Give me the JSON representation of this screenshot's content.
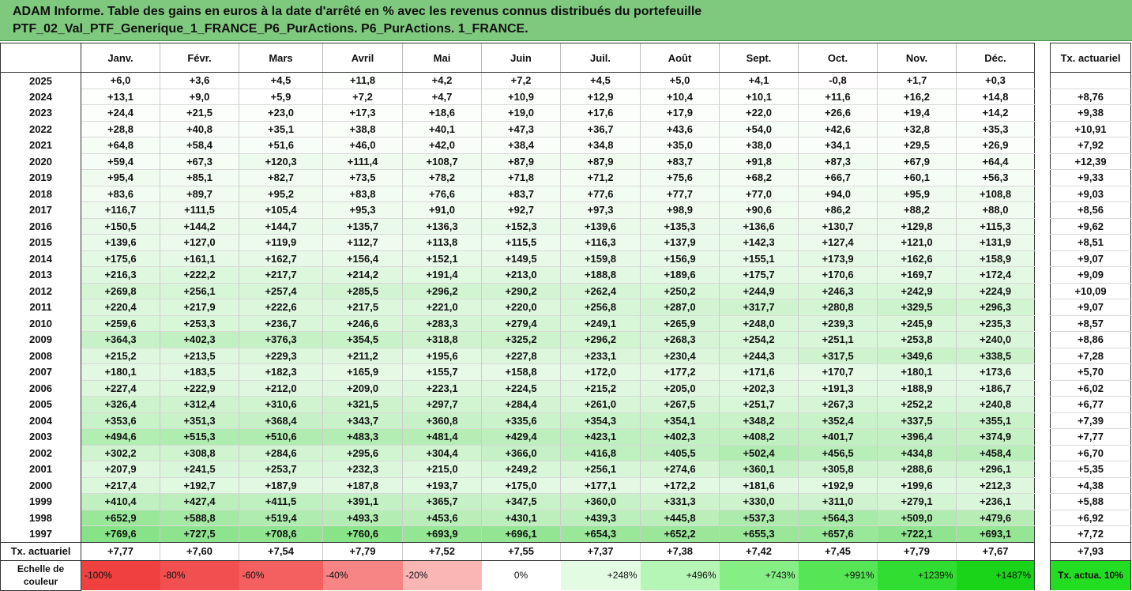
{
  "title": {
    "line1": "ADAM Informe. Table des gains en euros à la date d'arrêté en % avec les revenus connus distribués du portefeuille",
    "line2": "PTF_02_Val_PTF_Generique_1_FRANCE_P6_PurActions. P6_PurActions. 1_FRANCE."
  },
  "months": [
    "Janv.",
    "Févr.",
    "Mars",
    "Avril",
    "Mai",
    "Juin",
    "Juil.",
    "Août",
    "Sept.",
    "Oct.",
    "Nov.",
    "Déc."
  ],
  "side_header": "Tx. actuariel",
  "rows": [
    {
      "year": "2025",
      "values": [
        "+6,0",
        "+3,6",
        "+4,5",
        "+11,8",
        "+4,2",
        "+7,2",
        "+4,5",
        "+5,0",
        "+4,1",
        "-0,8",
        "+1,7",
        "+0,3"
      ],
      "rate": ""
    },
    {
      "year": "2024",
      "values": [
        "+13,1",
        "+9,0",
        "+5,9",
        "+7,2",
        "+4,7",
        "+10,9",
        "+12,9",
        "+10,4",
        "+10,1",
        "+11,6",
        "+16,2",
        "+14,8"
      ],
      "rate": "+8,76"
    },
    {
      "year": "2023",
      "values": [
        "+24,4",
        "+21,5",
        "+23,0",
        "+17,3",
        "+18,6",
        "+19,0",
        "+17,6",
        "+17,9",
        "+22,0",
        "+26,6",
        "+19,4",
        "+14,2"
      ],
      "rate": "+9,38"
    },
    {
      "year": "2022",
      "values": [
        "+28,8",
        "+40,8",
        "+35,1",
        "+38,8",
        "+40,1",
        "+47,3",
        "+36,7",
        "+43,6",
        "+54,0",
        "+42,6",
        "+32,8",
        "+35,3"
      ],
      "rate": "+10,91"
    },
    {
      "year": "2021",
      "values": [
        "+64,8",
        "+58,4",
        "+51,6",
        "+46,0",
        "+42,0",
        "+38,4",
        "+34,8",
        "+35,0",
        "+38,0",
        "+34,1",
        "+29,5",
        "+26,9"
      ],
      "rate": "+7,92"
    },
    {
      "year": "2020",
      "values": [
        "+59,4",
        "+67,3",
        "+120,3",
        "+111,4",
        "+108,7",
        "+87,9",
        "+87,9",
        "+83,7",
        "+91,8",
        "+87,3",
        "+67,9",
        "+64,4"
      ],
      "rate": "+12,39"
    },
    {
      "year": "2019",
      "values": [
        "+95,4",
        "+85,1",
        "+82,7",
        "+73,5",
        "+78,2",
        "+71,8",
        "+71,2",
        "+75,6",
        "+68,2",
        "+66,7",
        "+60,1",
        "+56,3"
      ],
      "rate": "+9,33"
    },
    {
      "year": "2018",
      "values": [
        "+83,6",
        "+89,7",
        "+95,2",
        "+83,8",
        "+76,6",
        "+83,7",
        "+77,6",
        "+77,7",
        "+77,0",
        "+94,0",
        "+95,9",
        "+108,8"
      ],
      "rate": "+9,03"
    },
    {
      "year": "2017",
      "values": [
        "+116,7",
        "+111,5",
        "+105,4",
        "+95,3",
        "+91,0",
        "+92,7",
        "+97,3",
        "+98,9",
        "+90,6",
        "+86,2",
        "+88,2",
        "+88,0"
      ],
      "rate": "+8,56"
    },
    {
      "year": "2016",
      "values": [
        "+150,5",
        "+144,2",
        "+144,7",
        "+135,7",
        "+136,3",
        "+152,3",
        "+139,6",
        "+135,3",
        "+136,6",
        "+130,7",
        "+129,8",
        "+115,3"
      ],
      "rate": "+9,62"
    },
    {
      "year": "2015",
      "values": [
        "+139,6",
        "+127,0",
        "+119,9",
        "+112,7",
        "+113,8",
        "+115,5",
        "+116,3",
        "+137,9",
        "+142,3",
        "+127,4",
        "+121,0",
        "+131,9"
      ],
      "rate": "+8,51"
    },
    {
      "year": "2014",
      "values": [
        "+175,6",
        "+161,1",
        "+162,7",
        "+156,4",
        "+152,1",
        "+149,5",
        "+159,8",
        "+156,9",
        "+155,1",
        "+173,9",
        "+162,6",
        "+158,9"
      ],
      "rate": "+9,07"
    },
    {
      "year": "2013",
      "values": [
        "+216,3",
        "+222,2",
        "+217,7",
        "+214,2",
        "+191,4",
        "+213,0",
        "+188,8",
        "+189,6",
        "+175,7",
        "+170,6",
        "+169,7",
        "+172,4"
      ],
      "rate": "+9,09"
    },
    {
      "year": "2012",
      "values": [
        "+269,8",
        "+256,1",
        "+257,4",
        "+285,5",
        "+296,2",
        "+290,2",
        "+262,4",
        "+250,2",
        "+244,9",
        "+246,3",
        "+242,9",
        "+224,9"
      ],
      "rate": "+10,09"
    },
    {
      "year": "2011",
      "values": [
        "+220,4",
        "+217,9",
        "+222,6",
        "+217,5",
        "+221,0",
        "+220,0",
        "+256,8",
        "+287,0",
        "+317,7",
        "+280,8",
        "+329,5",
        "+296,3"
      ],
      "rate": "+9,07"
    },
    {
      "year": "2010",
      "values": [
        "+259,6",
        "+253,3",
        "+236,7",
        "+246,6",
        "+283,3",
        "+279,4",
        "+249,1",
        "+265,9",
        "+248,0",
        "+239,3",
        "+245,9",
        "+235,3"
      ],
      "rate": "+8,57"
    },
    {
      "year": "2009",
      "values": [
        "+364,3",
        "+402,3",
        "+376,3",
        "+354,5",
        "+318,8",
        "+325,2",
        "+296,2",
        "+268,3",
        "+254,2",
        "+251,1",
        "+253,8",
        "+240,0"
      ],
      "rate": "+8,86"
    },
    {
      "year": "2008",
      "values": [
        "+215,2",
        "+213,5",
        "+229,3",
        "+211,2",
        "+195,6",
        "+227,8",
        "+233,1",
        "+230,4",
        "+244,3",
        "+317,5",
        "+349,6",
        "+338,5"
      ],
      "rate": "+7,28"
    },
    {
      "year": "2007",
      "values": [
        "+180,1",
        "+183,5",
        "+182,3",
        "+165,9",
        "+155,7",
        "+158,8",
        "+172,0",
        "+177,2",
        "+171,6",
        "+170,7",
        "+180,1",
        "+173,6"
      ],
      "rate": "+5,70"
    },
    {
      "year": "2006",
      "values": [
        "+227,4",
        "+222,9",
        "+212,0",
        "+209,0",
        "+223,1",
        "+224,5",
        "+215,2",
        "+205,0",
        "+202,3",
        "+191,3",
        "+188,9",
        "+186,7"
      ],
      "rate": "+6,02"
    },
    {
      "year": "2005",
      "values": [
        "+326,4",
        "+312,4",
        "+310,6",
        "+321,5",
        "+297,7",
        "+284,4",
        "+261,0",
        "+267,5",
        "+251,7",
        "+267,3",
        "+252,2",
        "+240,8"
      ],
      "rate": "+6,77"
    },
    {
      "year": "2004",
      "values": [
        "+353,6",
        "+351,3",
        "+368,4",
        "+343,7",
        "+360,8",
        "+335,6",
        "+354,3",
        "+354,1",
        "+348,2",
        "+352,4",
        "+337,5",
        "+355,1"
      ],
      "rate": "+7,39"
    },
    {
      "year": "2003",
      "values": [
        "+494,6",
        "+515,3",
        "+510,6",
        "+483,3",
        "+481,4",
        "+429,4",
        "+423,1",
        "+402,3",
        "+408,2",
        "+401,7",
        "+396,4",
        "+374,9"
      ],
      "rate": "+7,77"
    },
    {
      "year": "2002",
      "values": [
        "+302,2",
        "+308,8",
        "+284,6",
        "+295,6",
        "+304,4",
        "+366,0",
        "+416,8",
        "+405,5",
        "+502,4",
        "+456,5",
        "+434,8",
        "+458,4"
      ],
      "rate": "+6,70"
    },
    {
      "year": "2001",
      "values": [
        "+207,9",
        "+241,5",
        "+253,7",
        "+232,3",
        "+215,0",
        "+249,2",
        "+256,1",
        "+274,6",
        "+360,1",
        "+305,8",
        "+288,6",
        "+296,1"
      ],
      "rate": "+5,35"
    },
    {
      "year": "2000",
      "values": [
        "+217,4",
        "+192,7",
        "+187,9",
        "+187,8",
        "+193,7",
        "+175,0",
        "+177,1",
        "+172,2",
        "+181,6",
        "+192,9",
        "+199,6",
        "+212,3"
      ],
      "rate": "+4,38"
    },
    {
      "year": "1999",
      "values": [
        "+410,4",
        "+427,4",
        "+411,5",
        "+391,1",
        "+365,7",
        "+347,5",
        "+360,0",
        "+331,3",
        "+330,0",
        "+311,0",
        "+279,1",
        "+236,1"
      ],
      "rate": "+5,88"
    },
    {
      "year": "1998",
      "values": [
        "+652,9",
        "+588,8",
        "+519,4",
        "+493,3",
        "+453,6",
        "+430,1",
        "+439,3",
        "+445,8",
        "+537,3",
        "+564,3",
        "+509,0",
        "+479,6"
      ],
      "rate": "+6,92"
    },
    {
      "year": "1997",
      "values": [
        "+769,6",
        "+727,5",
        "+708,6",
        "+760,6",
        "+693,9",
        "+696,1",
        "+654,3",
        "+652,2",
        "+655,3",
        "+657,6",
        "+722,1",
        "+693,1"
      ],
      "rate": "+7,72"
    }
  ],
  "tx_row": {
    "label": "Tx. actuariel",
    "values": [
      "+7,77",
      "+7,60",
      "+7,54",
      "+7,79",
      "+7,52",
      "+7,55",
      "+7,37",
      "+7,38",
      "+7,42",
      "+7,45",
      "+7,79",
      "+7,67"
    ],
    "rate": "+7,93"
  },
  "scale": {
    "label": "Echelle de couleur",
    "items": [
      {
        "text": "-100%",
        "color": "#f04040",
        "align": "left"
      },
      {
        "text": "-80%",
        "color": "#f25050",
        "align": "left"
      },
      {
        "text": "-60%",
        "color": "#f46060",
        "align": "left"
      },
      {
        "text": "-40%",
        "color": "#f78585",
        "align": "left"
      },
      {
        "text": "-20%",
        "color": "#fab5b5",
        "align": "left"
      },
      {
        "text": "0%",
        "color": "#ffffff",
        "align": "center"
      },
      {
        "text": "+248%",
        "color": "#e3fbe3",
        "align": "right"
      },
      {
        "text": "+496%",
        "color": "#b5f5b5",
        "align": "right"
      },
      {
        "text": "+743%",
        "color": "#85ee85",
        "align": "right"
      },
      {
        "text": "+991%",
        "color": "#55e555",
        "align": "right"
      },
      {
        "text": "+1239%",
        "color": "#30dd30",
        "align": "right"
      },
      {
        "text": "+1487%",
        "color": "#1ad41a",
        "align": "right"
      }
    ],
    "side": "Tx. actua. 10%"
  }
}
